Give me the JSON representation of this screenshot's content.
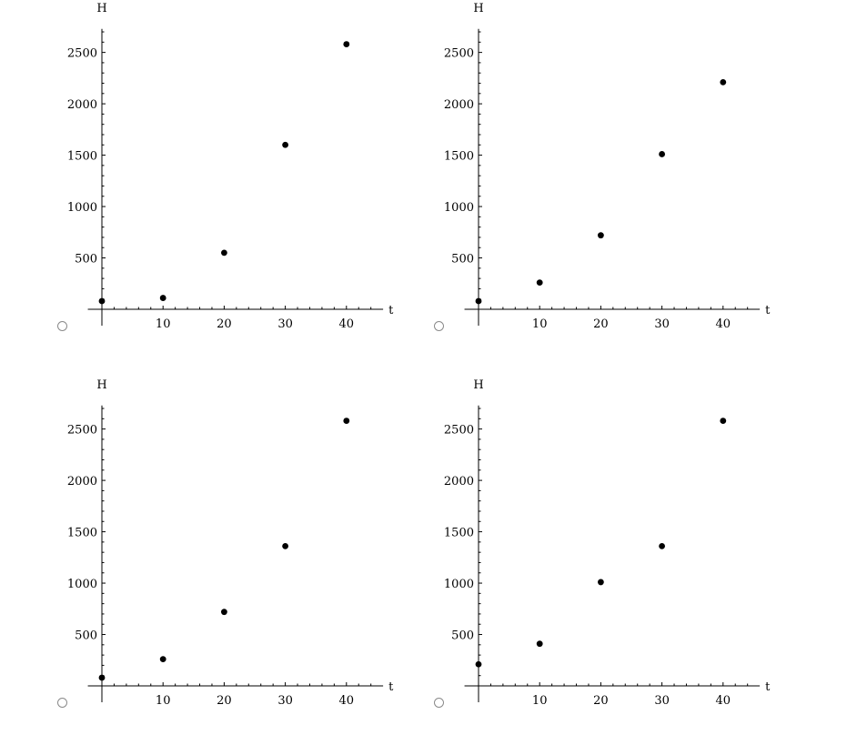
{
  "chart_data": [
    {
      "type": "scatter",
      "xlabel": "t",
      "ylabel": "H",
      "xlim": [
        -2,
        46
      ],
      "ylim": [
        -20,
        2800
      ],
      "xticks": [
        10,
        20,
        30,
        40
      ],
      "yticks": [
        500,
        1000,
        1500,
        2000,
        2500
      ],
      "x": [
        0,
        10,
        20,
        30,
        40
      ],
      "y": [
        80,
        110,
        550,
        1600,
        2580
      ]
    },
    {
      "type": "scatter",
      "xlabel": "t",
      "ylabel": "H",
      "xlim": [
        -2,
        46
      ],
      "ylim": [
        -20,
        2800
      ],
      "xticks": [
        10,
        20,
        30,
        40
      ],
      "yticks": [
        500,
        1000,
        1500,
        2000,
        2500
      ],
      "x": [
        0,
        10,
        20,
        30,
        40
      ],
      "y": [
        80,
        260,
        720,
        1510,
        2210
      ]
    },
    {
      "type": "scatter",
      "xlabel": "t",
      "ylabel": "H",
      "xlim": [
        -2,
        46
      ],
      "ylim": [
        -20,
        2800
      ],
      "xticks": [
        10,
        20,
        30,
        40
      ],
      "yticks": [
        500,
        1000,
        1500,
        2000,
        2500
      ],
      "x": [
        0,
        10,
        20,
        30,
        40
      ],
      "y": [
        80,
        260,
        720,
        1360,
        2580
      ]
    },
    {
      "type": "scatter",
      "xlabel": "t",
      "ylabel": "H",
      "xlim": [
        -2,
        46
      ],
      "ylim": [
        -20,
        2800
      ],
      "xticks": [
        10,
        20,
        30,
        40
      ],
      "yticks": [
        500,
        1000,
        1500,
        2000,
        2500
      ],
      "x": [
        0,
        10,
        20,
        30,
        40
      ],
      "y": [
        210,
        410,
        1010,
        1360,
        2580
      ]
    }
  ]
}
